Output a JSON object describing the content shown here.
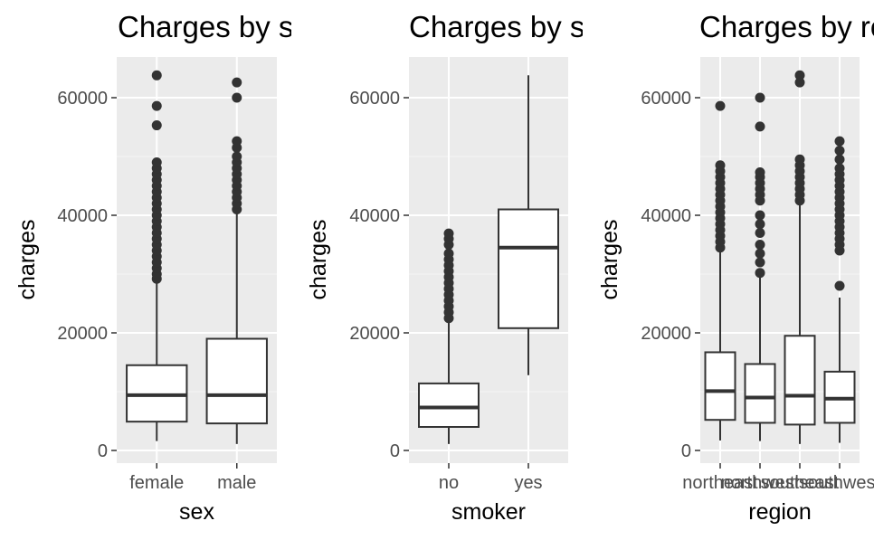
{
  "colors": {
    "panel_bg": "#ebebeb",
    "grid_major": "#ffffff",
    "grid_minor": "#f5f5f5",
    "box_stroke": "#333333",
    "outlier_fill": "#333333",
    "tick_text": "#4d4d4d"
  },
  "chart_data": [
    {
      "type": "box",
      "title": "Charges by sex",
      "xlabel": "sex",
      "ylabel": "charges",
      "ylim": [
        -2000,
        67000
      ],
      "yticks": [
        "0",
        "20000",
        "40000",
        "60000"
      ],
      "grid": true,
      "categories": [
        "female",
        "male"
      ],
      "boxes": [
        {
          "category": "female",
          "whisker_low": 1600,
          "q1": 4900,
          "median": 9400,
          "q3": 14500,
          "whisker_high": 28700,
          "outliers": [
            29200,
            30000,
            31000,
            32000,
            33000,
            34000,
            35000,
            36000,
            37000,
            38000,
            39000,
            40000,
            41000,
            42000,
            43000,
            44000,
            45000,
            46000,
            47000,
            48000,
            49000,
            55300,
            58600,
            63800
          ]
        },
        {
          "category": "male",
          "whisker_low": 1100,
          "q1": 4600,
          "median": 9400,
          "q3": 19000,
          "whisker_high": 40700,
          "outliers": [
            41000,
            42000,
            43000,
            44000,
            45000,
            46000,
            47000,
            48000,
            49000,
            50000,
            51500,
            52600,
            60000,
            62600
          ]
        }
      ]
    },
    {
      "type": "box",
      "title": "Charges by smoker",
      "xlabel": "smoker",
      "ylabel": "charges",
      "ylim": [
        -2000,
        67000
      ],
      "yticks": [
        "0",
        "20000",
        "40000",
        "60000"
      ],
      "grid": true,
      "categories": [
        "no",
        "yes"
      ],
      "boxes": [
        {
          "category": "no",
          "whisker_low": 1100,
          "q1": 4000,
          "median": 7300,
          "q3": 11400,
          "whisker_high": 22000,
          "outliers": [
            22500,
            23500,
            24500,
            25500,
            26500,
            27500,
            28500,
            29500,
            30500,
            31500,
            32500,
            33500,
            35000,
            36000,
            36900
          ]
        },
        {
          "category": "yes",
          "whisker_low": 12800,
          "q1": 20800,
          "median": 34500,
          "q3": 41000,
          "whisker_high": 63800,
          "outliers": []
        }
      ]
    },
    {
      "type": "box",
      "title": "Charges by region",
      "xlabel": "region",
      "ylabel": "charges",
      "ylim": [
        -2000,
        67000
      ],
      "yticks": [
        "0",
        "20000",
        "40000",
        "60000"
      ],
      "grid": true,
      "categories": [
        "northeast",
        "northwest",
        "southeast",
        "southwest"
      ],
      "boxes": [
        {
          "category": "northeast",
          "whisker_low": 1700,
          "q1": 5200,
          "median": 10100,
          "q3": 16700,
          "whisker_high": 33700,
          "outliers": [
            34500,
            35500,
            36500,
            37500,
            38500,
            39500,
            40500,
            41500,
            42500,
            43500,
            44500,
            45500,
            46500,
            47500,
            48500,
            58600
          ]
        },
        {
          "category": "northwest",
          "whisker_low": 1600,
          "q1": 4700,
          "median": 9000,
          "q3": 14700,
          "whisker_high": 29800,
          "outliers": [
            30200,
            32000,
            33500,
            35000,
            37000,
            38500,
            40000,
            42500,
            43500,
            44500,
            45500,
            46500,
            47300,
            55100,
            60000
          ]
        },
        {
          "category": "southeast",
          "whisker_low": 1100,
          "q1": 4400,
          "median": 9300,
          "q3": 19500,
          "whisker_high": 42000,
          "outliers": [
            42500,
            43500,
            44500,
            45500,
            46500,
            47500,
            48500,
            49500,
            62600,
            63800
          ]
        },
        {
          "category": "southwest",
          "whisker_low": 1300,
          "q1": 4700,
          "median": 8800,
          "q3": 13400,
          "whisker_high": 26000,
          "outliers": [
            28000,
            34000,
            35000,
            36000,
            37000,
            38000,
            39000,
            40000,
            41000,
            42000,
            43000,
            44000,
            45000,
            46000,
            47000,
            48000,
            49500,
            51000,
            52600
          ]
        }
      ]
    }
  ]
}
